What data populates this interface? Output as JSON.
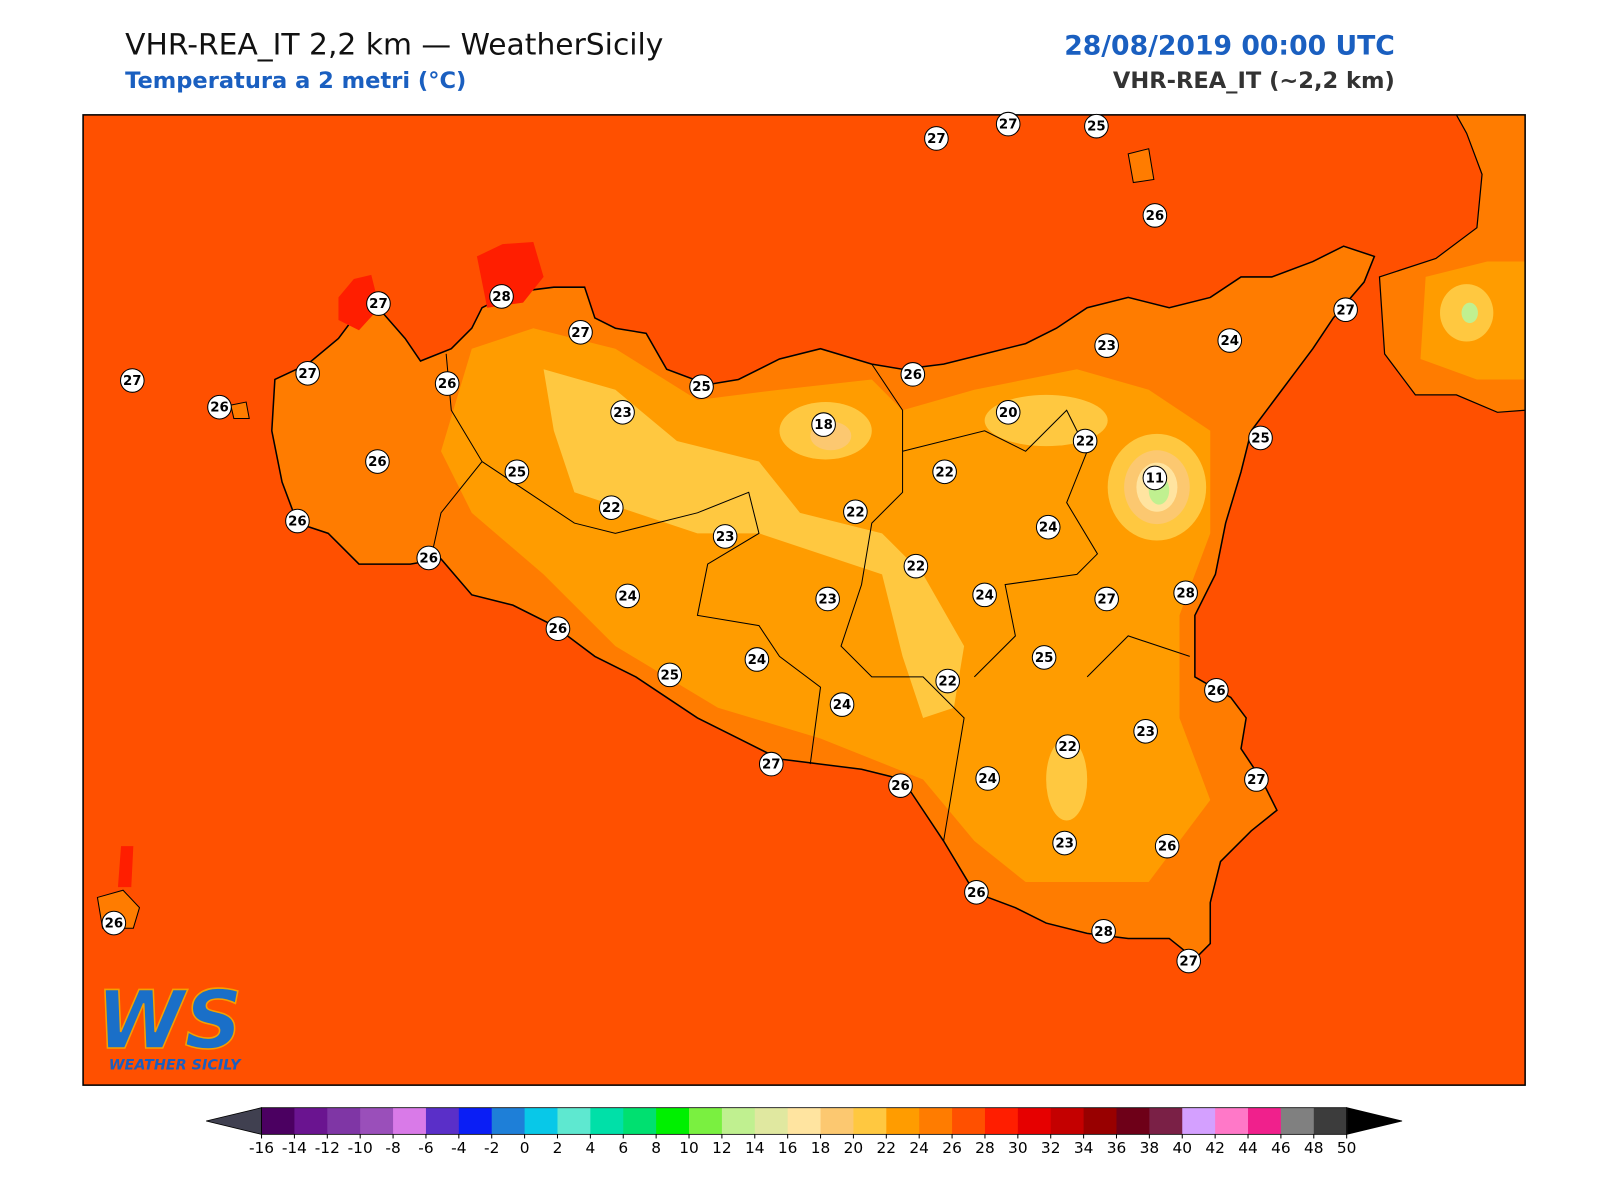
{
  "header": {
    "title": "VHR-REA_IT 2,2 km — WeatherSicily",
    "subtitle": "Temperatura a 2 metri (°C)",
    "datetime": "28/08/2019 00:00 UTC",
    "model": "VHR-REA_IT (~2,2 km)"
  },
  "logo": {
    "mark": "WS",
    "text": "WEATHER SICILY"
  },
  "stations": [
    27,
    27,
    25,
    26,
    27,
    28,
    27,
    27,
    27,
    26,
    26,
    25,
    26,
    23,
    24,
    27,
    23,
    18,
    20,
    22,
    25,
    26,
    25,
    22,
    11,
    26,
    22,
    22,
    23,
    24,
    26,
    22,
    24,
    23,
    24,
    27,
    28,
    26,
    25,
    24,
    25,
    22,
    26,
    24,
    23,
    22,
    27,
    26,
    24,
    27,
    23,
    26,
    26,
    26,
    28,
    27
  ],
  "colorbar": {
    "ticks": [
      -16,
      -14,
      -12,
      -10,
      -8,
      -6,
      -4,
      -2,
      0,
      2,
      4,
      6,
      8,
      10,
      12,
      14,
      16,
      18,
      20,
      22,
      24,
      26,
      28,
      30,
      32,
      34,
      36,
      38,
      40,
      42,
      44,
      46,
      48,
      50
    ],
    "colors": [
      "#4b0061",
      "#6a1490",
      "#7f36a5",
      "#9a4fba",
      "#d97ae8",
      "#5a2fc8",
      "#0a1ef5",
      "#1e7fd8",
      "#08c8e8",
      "#5ee8d0",
      "#00e0a8",
      "#00e070",
      "#00f000",
      "#7af040",
      "#c0f090",
      "#e0e8a0",
      "#ffe4a0",
      "#fcc870",
      "#ffc840",
      "#ff9c00",
      "#ff7c00",
      "#ff5000",
      "#ff1e00",
      "#e60000",
      "#c40000",
      "#980000",
      "#6e0018",
      "#7a2046",
      "#d4a0ff",
      "#ff78c8",
      "#f0208c",
      "#808080",
      "#3c3c3c"
    ],
    "under": "#404050",
    "over": "#000000"
  }
}
